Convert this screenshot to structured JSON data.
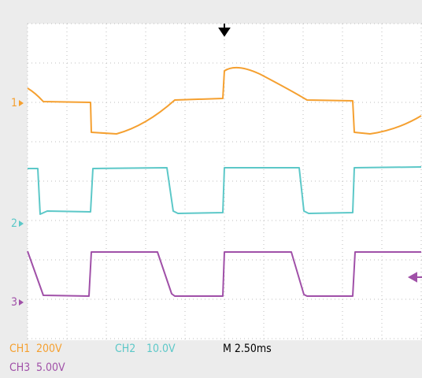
{
  "traces": [
    {
      "marker": "1"
    },
    {
      "marker": "2"
    },
    {
      "marker": "3"
    }
  ],
  "readout": {
    "ch1": {
      "name": "CH1",
      "scale": "200V"
    },
    "ch2": {
      "name": "CH2",
      "scale": "10.0V"
    },
    "ch3": {
      "name": "CH3",
      "scale": "5.00V"
    },
    "timebase": "M 2.50ms"
  }
}
